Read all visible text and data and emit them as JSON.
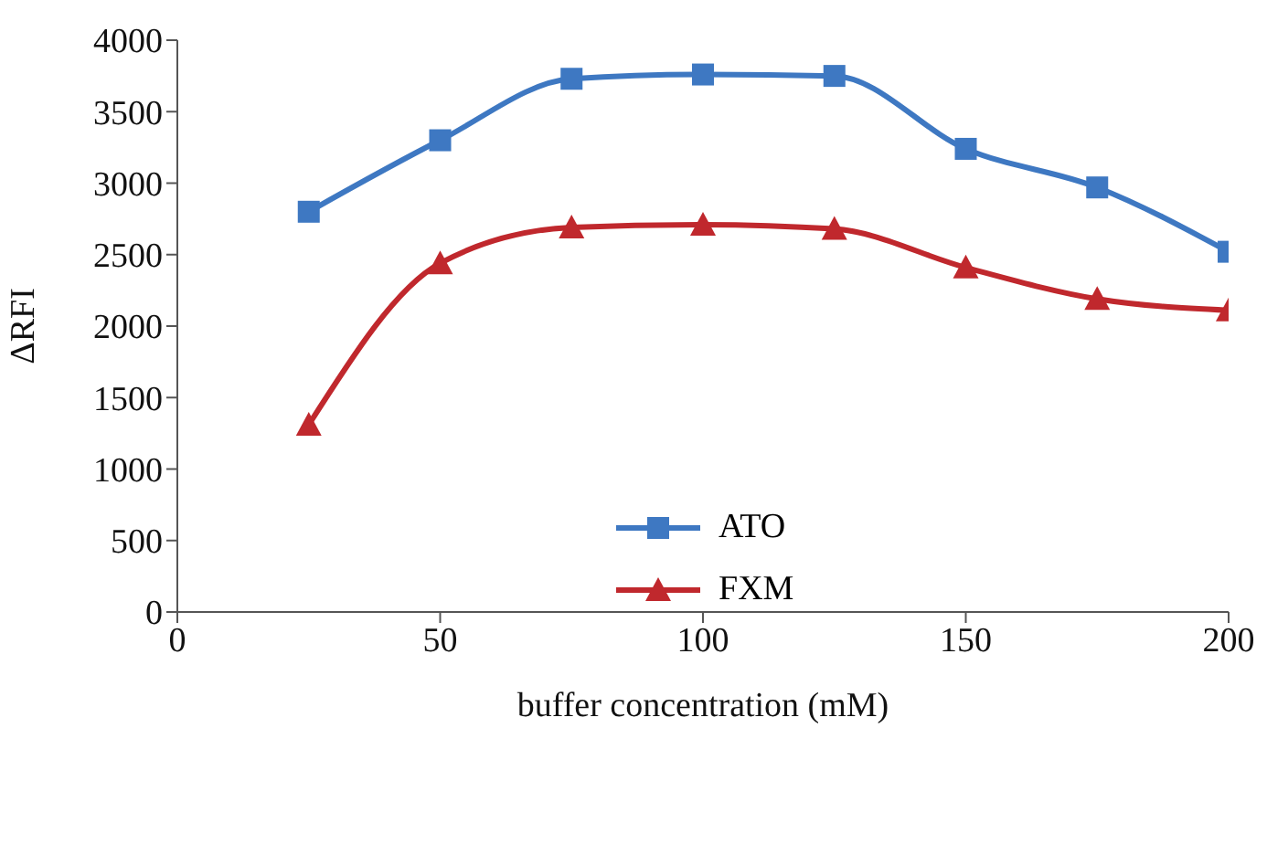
{
  "chart_data": {
    "type": "line",
    "xlabel": "buffer concentration (mM)",
    "ylabel": "ΔRFI",
    "x": [
      25,
      50,
      75,
      100,
      125,
      150,
      175,
      200
    ],
    "series": [
      {
        "name": "ATO",
        "color": "#3e78c2",
        "marker": "square",
        "values": [
          2800,
          3300,
          3730,
          3760,
          3750,
          3240,
          2970,
          2520
        ]
      },
      {
        "name": "FXM",
        "color": "#c0282d",
        "marker": "triangle",
        "values": [
          1310,
          2440,
          2690,
          2710,
          2680,
          2410,
          2190,
          2110
        ]
      }
    ],
    "xlim": [
      0,
      200
    ],
    "xticks": [
      0,
      50,
      100,
      150,
      200
    ],
    "ylim": [
      0,
      4000
    ],
    "yticks": [
      0,
      500,
      1000,
      1500,
      2000,
      2500,
      3000,
      3500,
      4000
    ],
    "grid": false,
    "legend": "bottom",
    "line_style": "solid"
  }
}
